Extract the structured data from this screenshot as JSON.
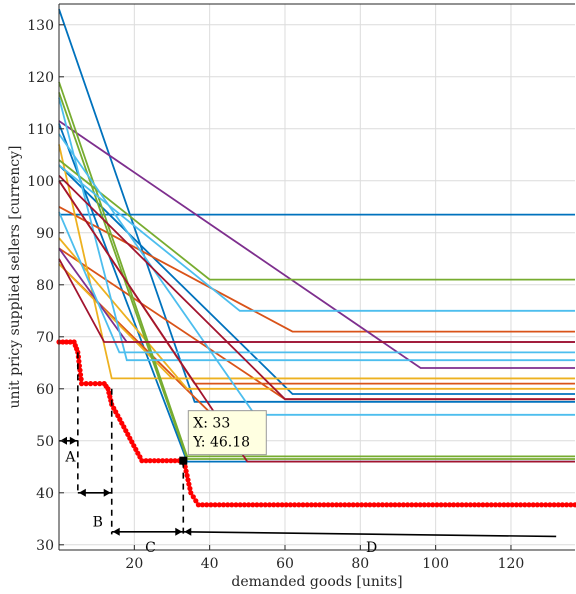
{
  "chart_data": {
    "type": "line",
    "title": "",
    "xlabel": "demanded goods [units]",
    "ylabel": "unit pricy supplied sellers [currency]",
    "xlim": [
      0,
      137
    ],
    "ylim": [
      29,
      134
    ],
    "xticks": [
      "20",
      "40",
      "60",
      "80",
      "100",
      "120"
    ],
    "xtick_values": [
      20,
      40,
      60,
      80,
      100,
      120
    ],
    "yticks": [
      "30",
      "40",
      "50",
      "60",
      "70",
      "80",
      "90",
      "100",
      "110",
      "120",
      "130"
    ],
    "ytick_values": [
      30,
      40,
      50,
      60,
      70,
      80,
      90,
      100,
      110,
      120,
      130
    ],
    "grid": true,
    "supplier_curves": [
      {
        "color": "#0072BD",
        "points": [
          [
            0,
            133
          ],
          [
            36,
            57.5
          ],
          [
            137,
            57.5
          ]
        ]
      },
      {
        "color": "#0072BD",
        "points": [
          [
            0,
            93.5
          ],
          [
            137,
            93.5
          ]
        ]
      },
      {
        "color": "#0072BD",
        "points": [
          [
            0,
            103
          ],
          [
            62,
            59
          ],
          [
            137,
            59
          ]
        ]
      },
      {
        "color": "#0072BD",
        "points": [
          [
            0,
            111
          ],
          [
            34,
            46
          ],
          [
            137,
            46
          ]
        ]
      },
      {
        "color": "#D95319",
        "points": [
          [
            0,
            95
          ],
          [
            62,
            71
          ],
          [
            137,
            71
          ]
        ]
      },
      {
        "color": "#D95319",
        "points": [
          [
            0,
            100
          ],
          [
            36,
            61
          ],
          [
            137,
            61
          ]
        ]
      },
      {
        "color": "#D95319",
        "points": [
          [
            0,
            87
          ],
          [
            60,
            58
          ],
          [
            137,
            58
          ]
        ]
      },
      {
        "color": "#D95319",
        "points": [
          [
            0,
            84
          ],
          [
            40,
            55.5
          ]
        ]
      },
      {
        "color": "#EDB120",
        "points": [
          [
            0,
            107
          ],
          [
            14,
            62
          ],
          [
            137,
            62
          ]
        ]
      },
      {
        "color": "#EDB120",
        "points": [
          [
            0,
            89
          ],
          [
            34,
            60
          ],
          [
            137,
            60
          ]
        ]
      },
      {
        "color": "#EDB120",
        "points": [
          [
            0,
            84
          ],
          [
            30,
            62
          ],
          [
            137,
            62
          ]
        ]
      },
      {
        "color": "#7E2F8E",
        "points": [
          [
            0,
            111.5
          ],
          [
            96,
            64
          ],
          [
            137,
            64
          ]
        ]
      },
      {
        "color": "#7E2F8E",
        "points": [
          [
            0,
            87
          ],
          [
            18,
            69
          ],
          [
            137,
            69
          ]
        ]
      },
      {
        "color": "#77AC30",
        "points": [
          [
            0,
            119
          ],
          [
            34,
            47
          ],
          [
            137,
            47
          ]
        ]
      },
      {
        "color": "#77AC30",
        "points": [
          [
            0,
            104
          ],
          [
            40,
            81
          ],
          [
            137,
            81
          ]
        ]
      },
      {
        "color": "#77AC30",
        "points": [
          [
            0,
            117
          ],
          [
            34,
            46.5
          ],
          [
            137,
            46.5
          ]
        ]
      },
      {
        "color": "#4DBEEE",
        "points": [
          [
            0,
            116
          ],
          [
            18,
            65.5
          ],
          [
            137,
            65.5
          ]
        ]
      },
      {
        "color": "#4DBEEE",
        "points": [
          [
            0,
            109
          ],
          [
            52,
            55
          ],
          [
            137,
            55
          ]
        ]
      },
      {
        "color": "#4DBEEE",
        "points": [
          [
            0,
            94
          ],
          [
            16,
            67
          ],
          [
            137,
            67
          ]
        ]
      },
      {
        "color": "#4DBEEE",
        "points": [
          [
            0,
            103
          ],
          [
            48,
            75
          ],
          [
            137,
            75
          ]
        ]
      },
      {
        "color": "#A2142F",
        "points": [
          [
            0,
            101
          ],
          [
            60,
            58
          ],
          [
            137,
            58
          ]
        ]
      },
      {
        "color": "#A2142F",
        "points": [
          [
            0,
            100
          ],
          [
            50,
            46
          ],
          [
            137,
            46
          ]
        ]
      },
      {
        "color": "#A2142F",
        "points": [
          [
            0,
            85
          ],
          [
            12,
            69
          ],
          [
            137,
            69
          ]
        ]
      }
    ],
    "demand_series": {
      "name": "",
      "color": "#FF0000",
      "points": [
        [
          0,
          69
        ],
        [
          4,
          69
        ],
        [
          5,
          67
        ],
        [
          6,
          61
        ],
        [
          12,
          61
        ],
        [
          13,
          60
        ],
        [
          14,
          57
        ],
        [
          22,
          46.18
        ],
        [
          33,
          46.18
        ],
        [
          33.5,
          45
        ],
        [
          35,
          40
        ],
        [
          37,
          37.7
        ],
        [
          137,
          37.7
        ]
      ]
    },
    "datatip": {
      "x_label": "X: 33",
      "y_label": "Y: 46.18",
      "x": 33,
      "y": 46.18
    },
    "segments": [
      {
        "label": "A",
        "x0": 0,
        "x1": 5
      },
      {
        "label": "B",
        "x0": 5,
        "x1": 14
      },
      {
        "label": "C",
        "x0": 14,
        "x1": 33
      },
      {
        "label": "D",
        "x0": 33,
        "x1": 137
      }
    ]
  }
}
